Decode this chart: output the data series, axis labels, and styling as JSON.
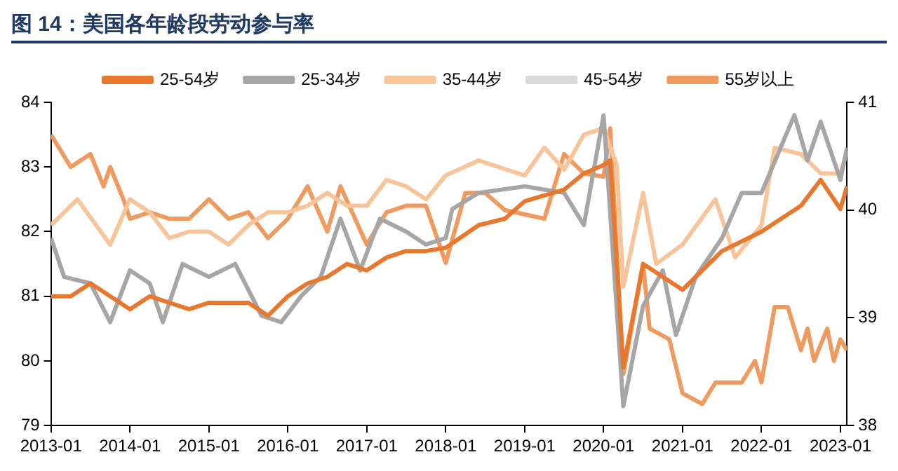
{
  "chart_data": {
    "type": "line",
    "title": "图 14：美国各年龄段劳动参与率",
    "xlim": [
      "2013-01",
      "2023-02"
    ],
    "xticks": [
      "2013-01",
      "2014-01",
      "2015-01",
      "2016-01",
      "2017-01",
      "2018-01",
      "2019-01",
      "2020-01",
      "2021-01",
      "2022-01",
      "2023-01"
    ],
    "ylim": [
      79,
      84
    ],
    "yticks": [
      79,
      80,
      81,
      82,
      83,
      84
    ],
    "y2lim": [
      38,
      41
    ],
    "y2ticks": [
      38,
      39,
      40,
      41
    ],
    "legend": "top",
    "grid": false,
    "marker": "none",
    "line_style": "solid",
    "series": [
      {
        "name": "25-54岁",
        "color": "#e8782e",
        "x": [
          "2013-01",
          "2013-04",
          "2013-07",
          "2013-10",
          "2014-01",
          "2014-04",
          "2014-07",
          "2014-10",
          "2015-01",
          "2015-04",
          "2015-07",
          "2015-10",
          "2016-01",
          "2016-04",
          "2016-07",
          "2016-10",
          "2017-01",
          "2017-04",
          "2017-07",
          "2017-10",
          "2018-01",
          "2018-06",
          "2018-10",
          "2019-01",
          "2019-07",
          "2019-10",
          "2020-01",
          "2020-02",
          "2020-04",
          "2020-07",
          "2020-10",
          "2021-01",
          "2021-07",
          "2022-01",
          "2022-07",
          "2022-10",
          "2023-01",
          "2023-02"
        ],
        "values": [
          81.0,
          81.0,
          81.2,
          81.0,
          80.8,
          81.0,
          80.9,
          80.8,
          80.9,
          80.9,
          80.9,
          80.7,
          81.0,
          81.2,
          81.3,
          81.5,
          81.4,
          81.6,
          81.7,
          81.7,
          81.75,
          82.1,
          82.2,
          82.47,
          82.65,
          82.9,
          83.03,
          83.1,
          79.9,
          81.5,
          81.3,
          81.1,
          81.7,
          82.0,
          82.4,
          82.8,
          82.35,
          82.7
        ]
      },
      {
        "name": "25-34岁",
        "color": "#a6a6a6",
        "x": [
          "2013-01",
          "2013-03",
          "2013-07",
          "2013-10",
          "2014-01",
          "2014-04",
          "2014-06",
          "2014-09",
          "2015-01",
          "2015-05",
          "2015-09",
          "2015-12",
          "2016-03",
          "2016-06",
          "2016-09",
          "2016-12",
          "2017-03",
          "2017-07",
          "2017-10",
          "2018-01",
          "2018-02",
          "2018-06",
          "2019-01",
          "2019-07",
          "2019-10",
          "2020-01",
          "2020-04",
          "2020-07",
          "2020-10",
          "2020-12",
          "2021-03",
          "2021-07",
          "2021-10",
          "2022-01",
          "2022-06",
          "2022-08",
          "2022-10",
          "2023-01",
          "2023-02"
        ],
        "values": [
          81.9,
          81.3,
          81.2,
          80.6,
          81.4,
          81.2,
          80.6,
          81.5,
          81.3,
          81.5,
          80.7,
          80.6,
          81.0,
          81.3,
          82.2,
          81.4,
          82.2,
          82.0,
          81.8,
          81.9,
          82.35,
          82.6,
          82.7,
          82.6,
          82.1,
          83.8,
          79.3,
          80.85,
          81.4,
          80.4,
          81.3,
          81.9,
          82.6,
          82.6,
          83.8,
          83.1,
          83.7,
          82.8,
          83.3
        ]
      },
      {
        "name": "35-44岁",
        "color": "#f8c49a",
        "x": [
          "2013-01",
          "2013-05",
          "2013-10",
          "2014-01",
          "2014-04",
          "2014-07",
          "2014-10",
          "2015-01",
          "2015-04",
          "2015-07",
          "2015-10",
          "2016-01",
          "2016-04",
          "2016-07",
          "2016-10",
          "2017-01",
          "2017-04",
          "2017-07",
          "2017-10",
          "2018-01",
          "2018-06",
          "2019-01",
          "2019-04",
          "2019-07",
          "2019-10",
          "2020-01",
          "2020-03",
          "2020-04",
          "2020-07",
          "2020-09",
          "2021-01",
          "2021-06",
          "2021-09",
          "2022-01",
          "2022-03",
          "2022-07",
          "2022-10",
          "2023-01",
          "2023-02"
        ],
        "values": [
          82.1,
          82.5,
          81.8,
          82.5,
          82.3,
          81.9,
          82.0,
          82.0,
          81.8,
          82.1,
          82.3,
          82.3,
          82.4,
          82.6,
          82.4,
          82.4,
          82.8,
          82.7,
          82.5,
          82.87,
          83.1,
          82.87,
          83.3,
          82.96,
          83.5,
          83.6,
          83.03,
          81.15,
          82.6,
          81.5,
          81.8,
          82.5,
          81.6,
          82.1,
          83.3,
          83.2,
          82.9,
          82.9,
          83.25
        ]
      },
      {
        "name": "45-54岁",
        "color": "#d9d9d9"
      },
      {
        "name": "55岁以上",
        "color": "#ef9a5e",
        "axis": "y2",
        "x": [
          "2013-01",
          "2013-04",
          "2013-07",
          "2013-09",
          "2013-10",
          "2013-12",
          "2014-01",
          "2014-04",
          "2014-07",
          "2014-10",
          "2015-01",
          "2015-04",
          "2015-07",
          "2015-10",
          "2016-01",
          "2016-04",
          "2016-07",
          "2016-09",
          "2017-01",
          "2017-04",
          "2017-07",
          "2017-10",
          "2018-01",
          "2018-04",
          "2018-07",
          "2018-10",
          "2019-04",
          "2019-07",
          "2019-10",
          "2020-01",
          "2020-02",
          "2020-04",
          "2020-07",
          "2020-08",
          "2020-11",
          "2021-01",
          "2021-04",
          "2021-06",
          "2021-10",
          "2021-12",
          "2022-01",
          "2022-03",
          "2022-05",
          "2022-07",
          "2022-08",
          "2022-09",
          "2022-11",
          "2022-12",
          "2023-01",
          "2023-02"
        ],
        "values": [
          40.7,
          40.4,
          40.52,
          40.22,
          40.4,
          40.1,
          39.92,
          39.98,
          39.92,
          39.92,
          40.1,
          39.92,
          39.98,
          39.74,
          39.92,
          40.22,
          39.8,
          40.22,
          39.68,
          39.98,
          40.04,
          40.04,
          39.51,
          40.16,
          40.16,
          40.0,
          39.92,
          40.52,
          40.34,
          40.31,
          40.76,
          38.48,
          39.5,
          38.9,
          38.8,
          38.3,
          38.2,
          38.4,
          38.4,
          38.6,
          38.4,
          39.1,
          39.1,
          38.7,
          38.9,
          38.6,
          38.9,
          38.6,
          38.8,
          38.7
        ]
      }
    ]
  }
}
